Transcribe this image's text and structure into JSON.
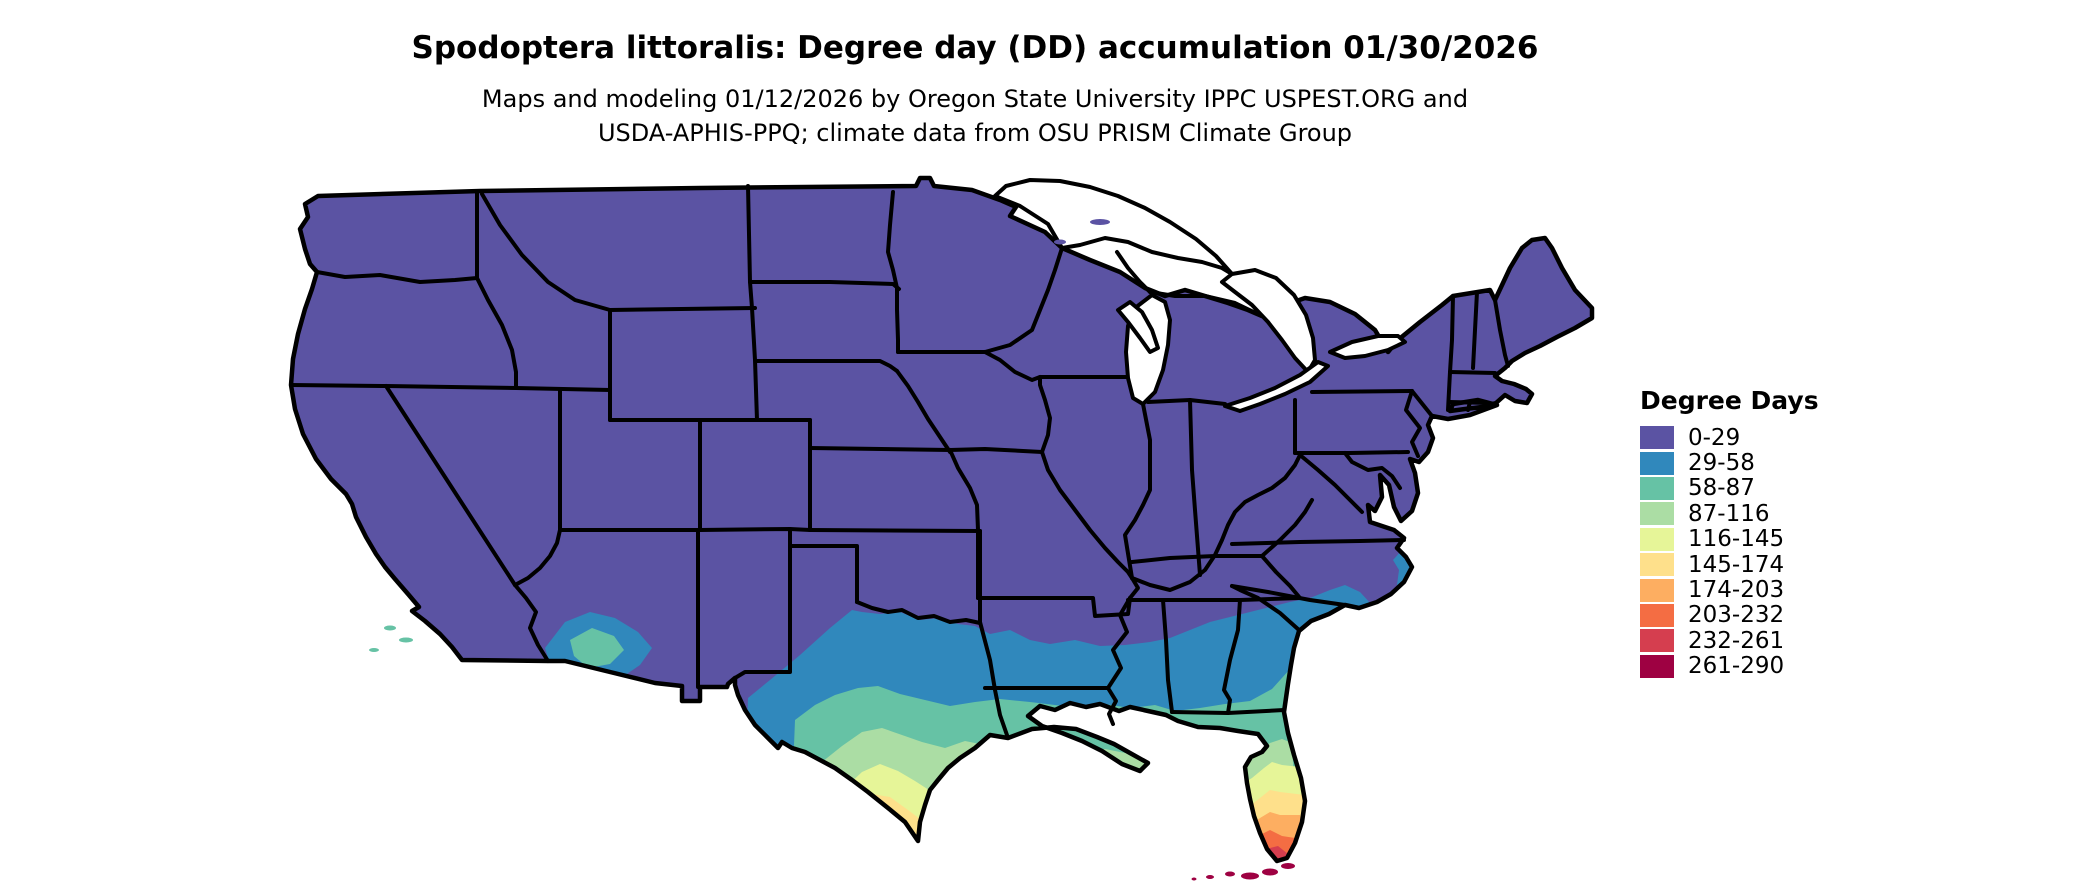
{
  "header": {
    "title": "Spodoptera littoralis: Degree day (DD) accumulation 01/30/2026",
    "subtitle_line1": "Maps and modeling 01/12/2026 by Oregon State University IPPC USPEST.ORG and",
    "subtitle_line2": "USDA-APHIS-PPQ; climate data from OSU PRISM Climate Group"
  },
  "legend": {
    "title": "Degree Days",
    "items": [
      {
        "label": "0-29",
        "color": "#5b53a3"
      },
      {
        "label": "29-58",
        "color": "#3088bc"
      },
      {
        "label": "58-87",
        "color": "#66c2a5"
      },
      {
        "label": "87-116",
        "color": "#abdda4"
      },
      {
        "label": "116-145",
        "color": "#e6f598"
      },
      {
        "label": "145-174",
        "color": "#fee08b"
      },
      {
        "label": "174-203",
        "color": "#fdae61"
      },
      {
        "label": "203-232",
        "color": "#f46d43"
      },
      {
        "label": "232-261",
        "color": "#d53e4f"
      },
      {
        "label": "261-290",
        "color": "#9e0142"
      }
    ]
  },
  "map": {
    "name": "Continental United States degree-day choropleth map",
    "border_color": "#000000",
    "water_color": "#ffffff",
    "background_color": "#ffffff"
  },
  "chart_data": {
    "type": "heatmap",
    "title": "Spodoptera littoralis: Degree day (DD) accumulation 01/30/2026",
    "legend_title": "Degree Days",
    "legend_position": "right",
    "bins": [
      "0-29",
      "29-58",
      "58-87",
      "87-116",
      "116-145",
      "145-174",
      "174-203",
      "203-232",
      "232-261",
      "261-290"
    ],
    "bin_colors": [
      "#5b53a3",
      "#3088bc",
      "#66c2a5",
      "#abdda4",
      "#e6f598",
      "#fee08b",
      "#fdae61",
      "#f46d43",
      "#d53e4f",
      "#9e0142"
    ],
    "regions": [
      {
        "region": "Most of continental US (west, plains, midwest, northeast, upper south)",
        "value": "0-29"
      },
      {
        "region": "Central Texas, southern Arkansas, central Mississippi/Alabama/Georgia, coastal South Carolina/North Carolina fringe, southern Arizona, southern California coast",
        "value": "29-58"
      },
      {
        "region": "South-central Texas, Gulf coast of Louisiana/Mississippi/Alabama, Florida panhandle and north Florida",
        "value": "58-87"
      },
      {
        "region": "Texas coastal plain, southern Louisiana delta, north-central Florida",
        "value": "87-116"
      },
      {
        "region": "South Texas, central Florida",
        "value": "116-145"
      },
      {
        "region": "Deep south Texas, south-central Florida",
        "value": "145-174"
      },
      {
        "region": "Rio Grande Valley tip of Texas, southern Florida",
        "value": "174-203"
      },
      {
        "region": "Far southern Florida peninsula",
        "value": "203-232"
      },
      {
        "region": "Southern tip of Florida",
        "value": "232-261"
      },
      {
        "region": "Florida Keys",
        "value": "261-290"
      }
    ]
  }
}
